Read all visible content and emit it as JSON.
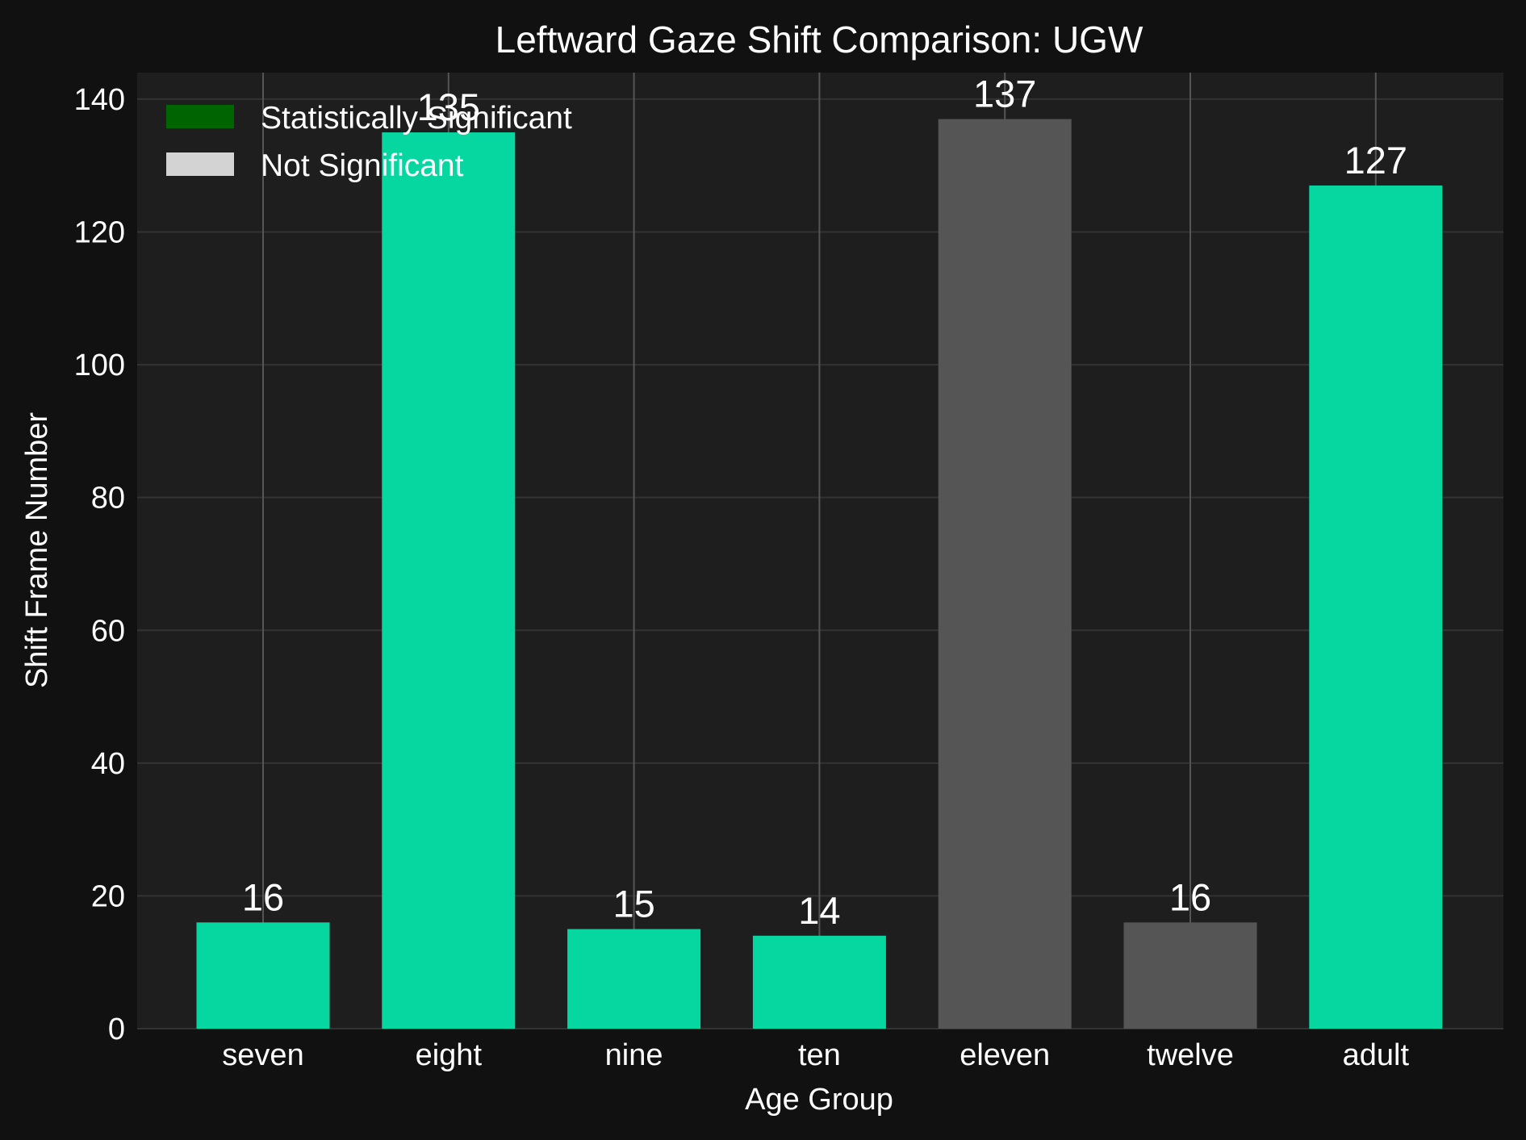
{
  "chart_data": {
    "type": "bar",
    "title": "Leftward Gaze Shift Comparison: UGW",
    "xlabel": "Age Group",
    "ylabel": "Shift Frame Number",
    "ylim": [
      0,
      144
    ],
    "yticks": [
      0,
      20,
      40,
      60,
      80,
      100,
      120,
      140
    ],
    "categories": [
      "seven",
      "eight",
      "nine",
      "ten",
      "eleven",
      "twelve",
      "adult"
    ],
    "values": [
      16,
      135,
      15,
      14,
      137,
      16,
      127
    ],
    "significant": [
      true,
      true,
      true,
      true,
      false,
      false,
      true
    ],
    "grid": true,
    "legend_position": "top-left",
    "legend": [
      {
        "label": "Statistically Significant",
        "color": "#006400"
      },
      {
        "label": "Not Significant",
        "color": "#d3d3d3"
      }
    ],
    "colors": {
      "significant_bar": "#06d6a0",
      "not_significant_bar": "#555555",
      "figure_background": "#111111",
      "plot_background": "#1e1e1e",
      "gridline": "#333333",
      "category_gridline": "#555555"
    }
  }
}
